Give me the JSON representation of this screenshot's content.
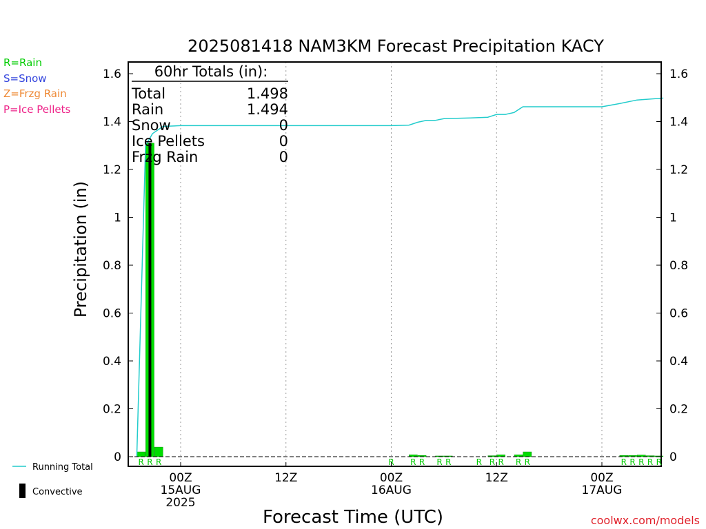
{
  "chart_data": {
    "type": "bar",
    "title": "2025081418 NAM3KM Forecast Precipitation KACY",
    "xlabel": "Forecast Time (UTC)",
    "ylabel": "Precipitation (in)",
    "ylim": [
      0,
      1.6
    ],
    "yticks": [
      "0",
      "0.2",
      "0.4",
      "0.6",
      "0.8",
      "1",
      "1.2",
      "1.4",
      "1.6"
    ],
    "xlim_hours": [
      -5,
      55
    ],
    "xticks": [
      {
        "hour": 0,
        "line1": "00Z",
        "line2": "15AUG",
        "line3": "2025"
      },
      {
        "hour": 12,
        "line1": "12Z",
        "line2": "",
        "line3": ""
      },
      {
        "hour": 24,
        "line1": "00Z",
        "line2": "16AUG",
        "line3": ""
      },
      {
        "hour": 36,
        "line1": "12Z",
        "line2": "",
        "line3": ""
      },
      {
        "hour": 48,
        "line1": "00Z",
        "line2": "17AUG",
        "line3": ""
      }
    ],
    "grid": "vertical dotted",
    "precip_legend": [
      {
        "text": "R=Rain",
        "color": "#00cc00"
      },
      {
        "text": "S=Snow",
        "color": "#3344dd"
      },
      {
        "text": "Z=Frzg Rain",
        "color": "#ee8833"
      },
      {
        "text": "P=Ice Pellets",
        "color": "#ee2288"
      }
    ],
    "series_legend": {
      "line": "Running Total",
      "bar": "Convective"
    },
    "totals": {
      "heading": "60hr Totals (in):",
      "rows": [
        {
          "label": "Total",
          "value": "1.498"
        },
        {
          "label": "Rain",
          "value": "1.494"
        },
        {
          "label": "Snow",
          "value": "0"
        },
        {
          "label": "Ice Pellets",
          "value": "0"
        },
        {
          "label": "Frzg Rain",
          "value": "0"
        }
      ]
    },
    "bars": [
      {
        "hour": -4.5,
        "value": 0.02,
        "ptype": "R"
      },
      {
        "hour": -3.5,
        "value": 1.31,
        "ptype": "R"
      },
      {
        "hour": -2.5,
        "value": 0.04,
        "ptype": "R"
      },
      {
        "hour": 24.0,
        "value": 0.0,
        "ptype": "R"
      },
      {
        "hour": 26.5,
        "value": 0.008,
        "ptype": "R"
      },
      {
        "hour": 27.5,
        "value": 0.005,
        "ptype": "R"
      },
      {
        "hour": 29.5,
        "value": 0.003,
        "ptype": "R"
      },
      {
        "hour": 30.5,
        "value": 0.003,
        "ptype": "R"
      },
      {
        "hour": 34.0,
        "value": 0.0,
        "ptype": "R"
      },
      {
        "hour": 35.5,
        "value": 0.004,
        "ptype": "R"
      },
      {
        "hour": 36.5,
        "value": 0.008,
        "ptype": "R"
      },
      {
        "hour": 38.5,
        "value": 0.008,
        "ptype": "R"
      },
      {
        "hour": 39.5,
        "value": 0.02,
        "ptype": "R"
      },
      {
        "hour": 50.5,
        "value": 0.005,
        "ptype": "R"
      },
      {
        "hour": 51.5,
        "value": 0.005,
        "ptype": "R"
      },
      {
        "hour": 52.5,
        "value": 0.007,
        "ptype": "R"
      },
      {
        "hour": 53.5,
        "value": 0.004,
        "ptype": "R"
      },
      {
        "hour": 54.5,
        "value": 0.003,
        "ptype": "R"
      }
    ],
    "running_total": {
      "x": [
        -5,
        -4,
        -3.2,
        -2,
        0,
        12,
        24,
        26,
        27,
        28,
        29,
        30,
        33,
        35,
        36,
        37,
        38,
        39,
        40,
        48,
        50,
        52,
        55
      ],
      "y": [
        0.0,
        1.3,
        1.35,
        1.38,
        1.383,
        1.383,
        1.383,
        1.385,
        1.397,
        1.405,
        1.405,
        1.412,
        1.415,
        1.418,
        1.43,
        1.43,
        1.438,
        1.462,
        1.462,
        1.462,
        1.475,
        1.49,
        1.498
      ]
    }
  },
  "footer": {
    "credit": "coolwx.com/models"
  }
}
